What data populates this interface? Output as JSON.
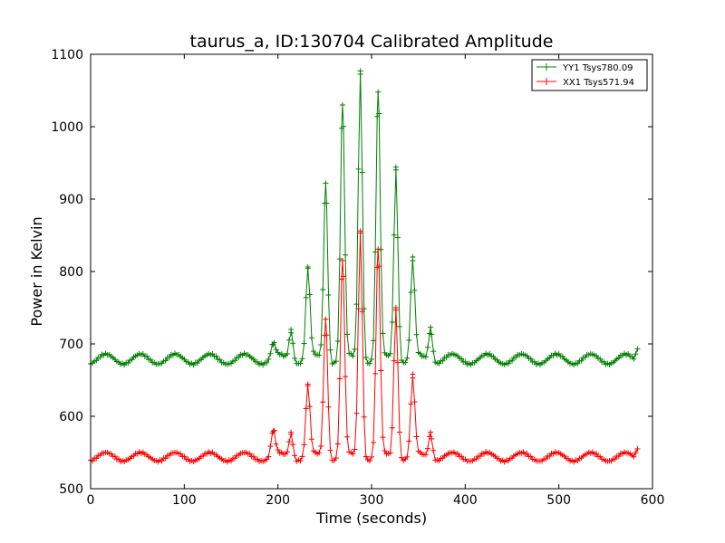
{
  "chart_data": {
    "type": "line",
    "title": "taurus_a, ID:130704 Calibrated Amplitude",
    "xlabel": "Time (seconds)",
    "ylabel": "Power in Kelvin",
    "xlim": [
      0,
      600
    ],
    "ylim": [
      500,
      1100
    ],
    "xticks": [
      "0",
      "100",
      "200",
      "300",
      "400",
      "500",
      "600"
    ],
    "yticks": [
      "500",
      "600",
      "700",
      "800",
      "900",
      "1000",
      "1100"
    ],
    "grid": false,
    "legend_position": "top-right",
    "x_sample_step_seconds": 2,
    "x_max": 584,
    "series": [
      {
        "name": "YY1 Tsys780.09",
        "color": "#008000",
        "marker": "plus",
        "baseline": 679,
        "oscillation_amplitude": 7,
        "oscillation_period_seconds": 37,
        "peaks": [
          {
            "x": 195,
            "y": 699
          },
          {
            "x": 214,
            "y": 720
          },
          {
            "x": 232,
            "y": 804
          },
          {
            "x": 251,
            "y": 922
          },
          {
            "x": 269,
            "y": 1030
          },
          {
            "x": 288,
            "y": 1077
          },
          {
            "x": 307,
            "y": 1048
          },
          {
            "x": 326,
            "y": 944
          },
          {
            "x": 344,
            "y": 815
          },
          {
            "x": 363,
            "y": 723
          }
        ],
        "end_value": 693
      },
      {
        "name": "XX1 Tsys571.94",
        "color": "#ff0000",
        "marker": "plus",
        "baseline": 544,
        "oscillation_amplitude": 6,
        "oscillation_period_seconds": 37,
        "peaks": [
          {
            "x": 195,
            "y": 579
          },
          {
            "x": 214,
            "y": 578
          },
          {
            "x": 232,
            "y": 642
          },
          {
            "x": 251,
            "y": 734
          },
          {
            "x": 269,
            "y": 815
          },
          {
            "x": 288,
            "y": 856
          },
          {
            "x": 307,
            "y": 831
          },
          {
            "x": 326,
            "y": 750
          },
          {
            "x": 344,
            "y": 653
          },
          {
            "x": 363,
            "y": 578
          }
        ],
        "end_value": 555
      }
    ]
  }
}
